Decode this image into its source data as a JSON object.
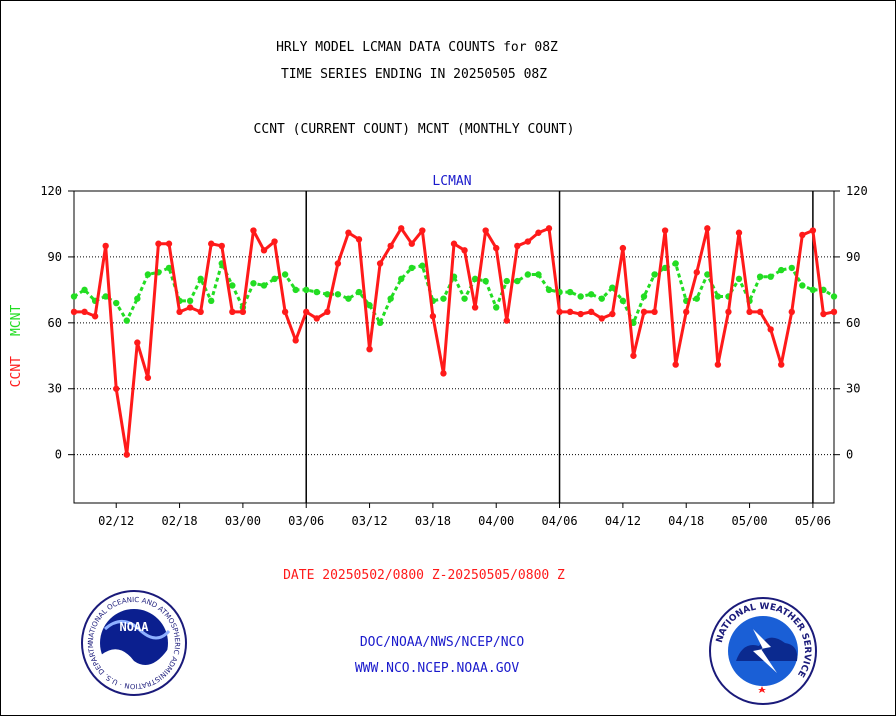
{
  "header": {
    "title_line1": "HRLY MODEL LCMAN DATA COUNTS for 08Z",
    "title_line2": "TIME SERIES ENDING IN 20250505 08Z",
    "subtitle": "CCNT (CURRENT COUNT) MCNT (MONTHLY COUNT)"
  },
  "footer": {
    "date_range": "DATE 20250502/0800 Z-20250505/0800 Z",
    "link1": "DOC/NOAA/NWS/NCEP/NCO",
    "link2": "WWW.NCO.NCEP.NOAA.GOV"
  },
  "logos": {
    "noaa_text": "NOAA",
    "noaa_ring": "NATIONAL OCEANIC AND ATMOSPHERIC ADMINISTRATION · U.S. DEPARTMENT OF COMMERCE ·",
    "nws_ring": "NATIONAL WEATHER SERVICE"
  },
  "colors": {
    "ccnt": "#ff1a1a",
    "mcnt": "#22dd22",
    "label_blue": "#1a1acc",
    "axis": "#000000"
  },
  "chart_data": {
    "type": "line",
    "title": "LCMAN",
    "ylabel_left": "CCNT",
    "ylabel_right": "MCNT",
    "ylim": [
      -22,
      120
    ],
    "yticks": [
      0,
      30,
      60,
      90,
      120
    ],
    "grid": "dotted horizontal at 0, 30, 60, 90",
    "xlim": [
      0,
      72
    ],
    "x_tick_labels": [
      "02/12",
      "02/18",
      "03/00",
      "03/06",
      "03/12",
      "03/18",
      "04/00",
      "04/06",
      "04/12",
      "04/18",
      "05/00",
      "05/06"
    ],
    "x_tick_values": [
      4,
      10,
      16,
      22,
      28,
      34,
      40,
      46,
      52,
      58,
      64,
      70
    ],
    "day_separators": [
      22,
      46,
      70
    ],
    "series": [
      {
        "name": "CCNT",
        "values": [
          65,
          65,
          63,
          95,
          30,
          0,
          51,
          35,
          96,
          96,
          65,
          67,
          65,
          96,
          95,
          65,
          65,
          102,
          93,
          97,
          65,
          52,
          65,
          62,
          65,
          87,
          101,
          98,
          48,
          87,
          95,
          103,
          96,
          102,
          63,
          37,
          96,
          93,
          67,
          102,
          94,
          61,
          95,
          97,
          101,
          103,
          65,
          65,
          64,
          65,
          62,
          64,
          94,
          45,
          65,
          65,
          102,
          41,
          65,
          83,
          103,
          41,
          65,
          101,
          65,
          65,
          57,
          41,
          65,
          100,
          102,
          64,
          65
        ]
      },
      {
        "name": "MCNT",
        "values": [
          72,
          75,
          70,
          72,
          69,
          61,
          71,
          82,
          83,
          85,
          70,
          70,
          80,
          70,
          87,
          77,
          67,
          78,
          77,
          80,
          82,
          75,
          75,
          74,
          73,
          73,
          71,
          74,
          68,
          60,
          71,
          80,
          85,
          86,
          70,
          71,
          81,
          71,
          80,
          79,
          67,
          79,
          79,
          82,
          82,
          75,
          74,
          74,
          72,
          73,
          71,
          76,
          70,
          60,
          72,
          82,
          85,
          87,
          70,
          71,
          82,
          72,
          72,
          80,
          70,
          81,
          81,
          84,
          85,
          77,
          75,
          75,
          72
        ]
      }
    ]
  }
}
